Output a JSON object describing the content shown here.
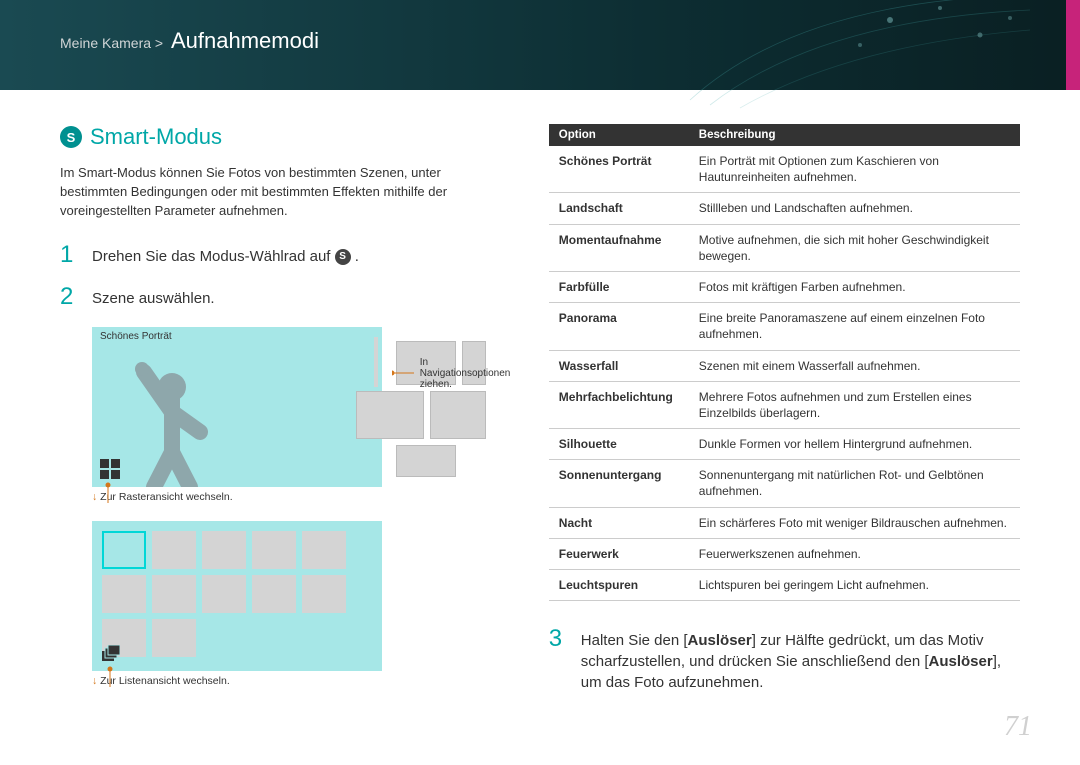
{
  "header": {
    "crumb_prefix": "Meine Kamera >",
    "crumb_title": "Aufnahmemodi"
  },
  "page_number": "71",
  "smart": {
    "title": "Smart-Modus",
    "icon_letter": "S",
    "intro": "Im Smart-Modus können Sie Fotos von bestimmten Szenen, unter bestimmten Bedingungen oder mit bestimmten Effekten mithilfe der voreingestellten Parameter aufnehmen.",
    "step1_prefix": "Drehen Sie das Modus-Wählrad auf ",
    "step1_suffix": " .",
    "step1_icon_letter": "S",
    "step2": "Szene auswählen.",
    "scene_label": "Schönes Porträt",
    "callout_nav": "In Navigationsoptionen ziehen.",
    "caption_grid": "Zur Rasteransicht wechseln.",
    "caption_list": "Zur Listenansicht wechseln.",
    "step3_part1": "Halten Sie den [",
    "step3_ausloser": "Auslöser",
    "step3_part2": "] zur Hälfte gedrückt, um das Motiv scharfzustellen, und drücken Sie anschließend den [",
    "step3_part3": "], um das Foto aufzunehmen."
  },
  "table": {
    "header_option": "Option",
    "header_desc": "Beschreibung",
    "rows": [
      {
        "opt": "Schönes Porträt",
        "desc": "Ein Porträt mit Optionen zum Kaschieren von Hautunreinheiten aufnehmen."
      },
      {
        "opt": "Landschaft",
        "desc": "Stillleben und Landschaften aufnehmen."
      },
      {
        "opt": "Momentaufnahme",
        "desc": "Motive aufnehmen, die sich mit hoher Geschwindigkeit bewegen."
      },
      {
        "opt": "Farbfülle",
        "desc": "Fotos mit kräftigen Farben aufnehmen."
      },
      {
        "opt": "Panorama",
        "desc": "Eine breite Panoramaszene auf einem einzelnen Foto aufnehmen."
      },
      {
        "opt": "Wasserfall",
        "desc": "Szenen mit einem Wasserfall aufnehmen."
      },
      {
        "opt": "Mehrfachbelichtung",
        "desc": "Mehrere Fotos aufnehmen und zum Erstellen eines Einzelbilds überlagern."
      },
      {
        "opt": "Silhouette",
        "desc": "Dunkle Formen vor hellem Hintergrund aufnehmen."
      },
      {
        "opt": "Sonnenuntergang",
        "desc": "Sonnenuntergang mit natürlichen Rot- und Gelbtönen aufnehmen."
      },
      {
        "opt": "Nacht",
        "desc": "Ein schärferes Foto mit weniger Bildrauschen aufnehmen."
      },
      {
        "opt": "Feuerwerk",
        "desc": "Feuerwerkszenen aufnehmen."
      },
      {
        "opt": "Leuchtspuren",
        "desc": "Lichtspuren bei geringem Licht aufnehmen."
      }
    ]
  },
  "colors": {
    "accent": "#00a7a7",
    "header_bg": "#1a4a52",
    "pink": "#c7237a",
    "callout": "#d4761a"
  }
}
